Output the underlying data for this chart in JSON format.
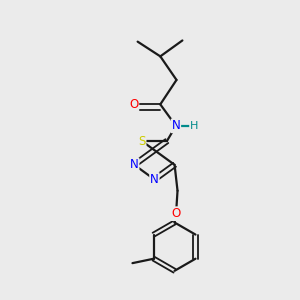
{
  "background_color": "#ebebeb",
  "bond_color": "#1a1a1a",
  "atom_colors": {
    "O": "#ff0000",
    "N": "#0000ff",
    "S": "#cccc00",
    "H": "#008b8b",
    "C": "#1a1a1a"
  },
  "figsize": [
    3.0,
    3.0
  ],
  "dpi": 100
}
